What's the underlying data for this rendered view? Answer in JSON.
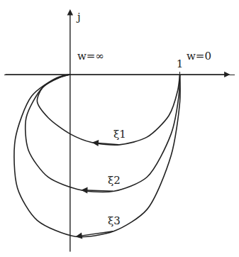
{
  "chart_data": {
    "type": "line",
    "xlim": [
      -0.6,
      1.5
    ],
    "ylim": [
      -1.65,
      0.65
    ],
    "xticks": [
      1
    ],
    "yticks": [],
    "tick_labels": "x",
    "grid": false,
    "y_label": "j",
    "annotations": [
      {
        "text": "w=∞",
        "x": 0.05,
        "y": 0.1
      },
      {
        "text": "w=0",
        "x": 1.05,
        "y": 0.1
      }
    ],
    "series": [
      {
        "name": "ξ1",
        "color": "#222222",
        "x": [
          1,
          0.98,
          0.9,
          0.7,
          0.45,
          0.2,
          0,
          -0.2,
          -0.3,
          -0.25,
          -0.1,
          0
        ],
        "y": [
          0,
          -0.15,
          -0.38,
          -0.58,
          -0.65,
          -0.63,
          -0.55,
          -0.4,
          -0.25,
          -0.12,
          -0.03,
          0
        ]
      },
      {
        "name": "ξ2",
        "color": "#222222",
        "x": [
          1,
          0.99,
          0.92,
          0.7,
          0.4,
          0.1,
          -0.2,
          -0.38,
          -0.4,
          -0.25,
          -0.08,
          0
        ],
        "y": [
          0,
          -0.2,
          -0.55,
          -0.95,
          -1.08,
          -1.07,
          -0.95,
          -0.7,
          -0.4,
          -0.12,
          -0.02,
          0
        ]
      },
      {
        "name": "ξ3",
        "color": "#222222",
        "x": [
          1,
          1,
          0.92,
          0.7,
          0.4,
          0.05,
          -0.3,
          -0.48,
          -0.5,
          -0.35,
          -0.12,
          0
        ],
        "y": [
          0,
          -0.25,
          -0.75,
          -1.25,
          -1.45,
          -1.5,
          -1.35,
          -1.05,
          -0.6,
          -0.2,
          -0.03,
          0
        ]
      }
    ]
  }
}
